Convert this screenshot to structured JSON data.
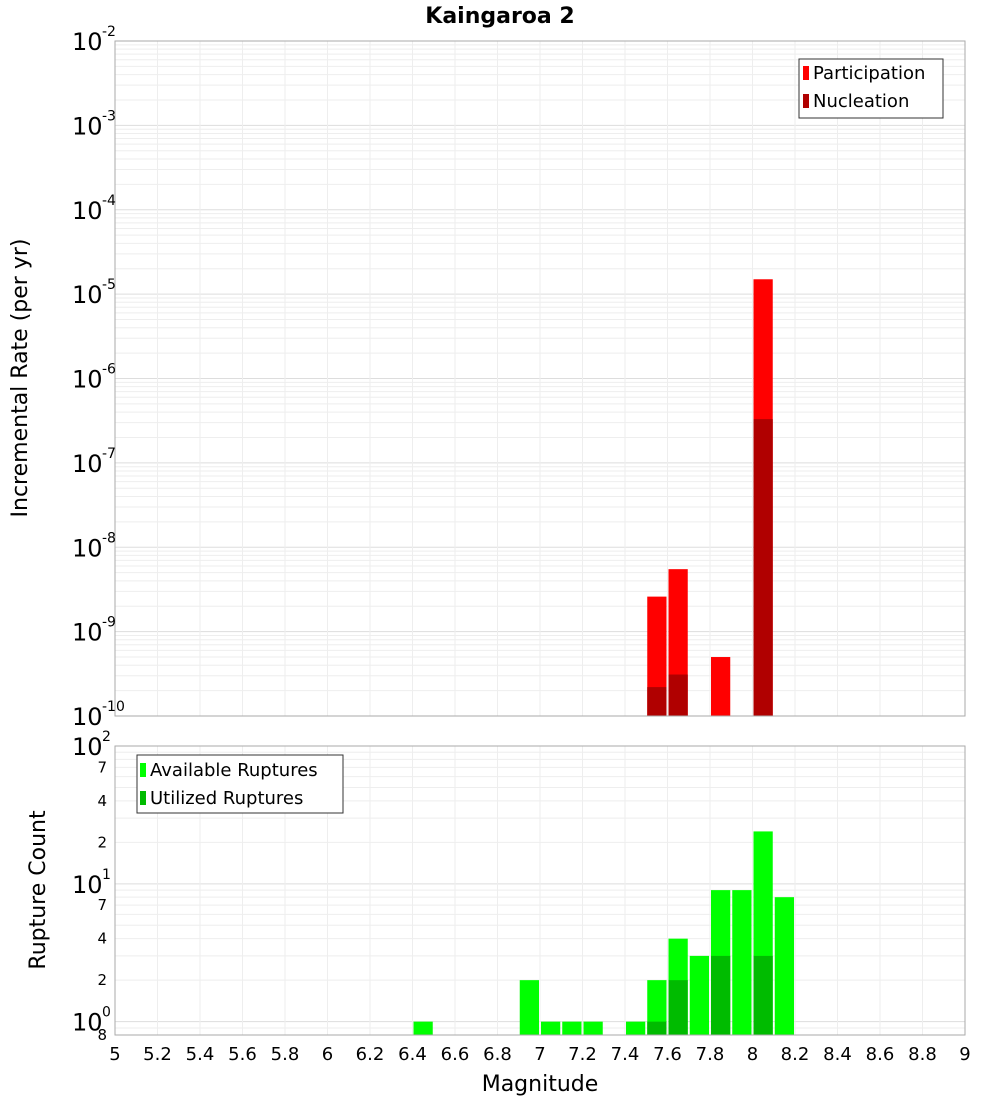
{
  "chart_data": [
    {
      "type": "bar",
      "title": "Kaingaroa 2",
      "xlabel": "Magnitude",
      "ylabel": "Incremental Rate (per yr)",
      "yscale": "log",
      "ylim": [
        1e-10,
        0.01
      ],
      "xlim": [
        5,
        9
      ],
      "x_ticks": [
        "5",
        "5.2",
        "5.4",
        "5.6",
        "5.8",
        "6",
        "6.2",
        "6.4",
        "6.6",
        "6.8",
        "7",
        "7.2",
        "7.4",
        "7.6",
        "7.8",
        "8",
        "8.2",
        "8.4",
        "8.6",
        "8.8",
        "9"
      ],
      "y_ticks": [
        {
          "base": "10",
          "exp": "-2"
        },
        {
          "base": "10",
          "exp": "-3"
        },
        {
          "base": "10",
          "exp": "-4"
        },
        {
          "base": "10",
          "exp": "-5"
        },
        {
          "base": "10",
          "exp": "-6"
        },
        {
          "base": "10",
          "exp": "-7"
        },
        {
          "base": "10",
          "exp": "-8"
        },
        {
          "base": "10",
          "exp": "-9"
        },
        {
          "base": "10",
          "exp": "-10"
        }
      ],
      "legend_position": "top-right",
      "grid": true,
      "series": [
        {
          "name": "Participation",
          "color": "#ff0000",
          "x": [
            7.55,
            7.65,
            7.85,
            8.05
          ],
          "values": [
            2.6e-09,
            5.5e-09,
            5e-10,
            1.5e-05
          ]
        },
        {
          "name": "Nucleation",
          "color": "#b00000",
          "x": [
            7.55,
            7.65,
            8.05
          ],
          "values": [
            2.2e-10,
            3.1e-10,
            3.3e-07
          ]
        }
      ]
    },
    {
      "type": "bar",
      "xlabel": "Magnitude",
      "ylabel": "Rupture Count",
      "yscale": "log",
      "ylim": [
        0.8,
        100
      ],
      "xlim": [
        5,
        9
      ],
      "y_ticks": [
        {
          "base": "10",
          "exp": "2",
          "value": 100
        },
        {
          "label": "7",
          "value": 70
        },
        {
          "label": "4",
          "value": 40
        },
        {
          "label": "2",
          "value": 20
        },
        {
          "base": "10",
          "exp": "1",
          "value": 10
        },
        {
          "label": "7",
          "value": 7
        },
        {
          "label": "4",
          "value": 4
        },
        {
          "label": "2",
          "value": 2
        },
        {
          "base": "10",
          "exp": "0",
          "value": 1
        },
        {
          "label": "8",
          "value": 0.8
        }
      ],
      "legend_position": "top-left",
      "grid": true,
      "series": [
        {
          "name": "Available Ruptures",
          "color": "#00ff00",
          "x": [
            6.45,
            6.95,
            7.05,
            7.15,
            7.25,
            7.45,
            7.55,
            7.65,
            7.75,
            7.85,
            7.95,
            8.05,
            8.15
          ],
          "values": [
            1,
            2,
            1,
            1,
            1,
            1,
            2,
            4,
            3,
            9,
            9,
            24,
            8
          ]
        },
        {
          "name": "Utilized Ruptures",
          "color": "#00bb00",
          "x": [
            7.55,
            7.65,
            7.85,
            8.05
          ],
          "values": [
            1,
            2,
            3,
            3
          ]
        }
      ]
    }
  ]
}
